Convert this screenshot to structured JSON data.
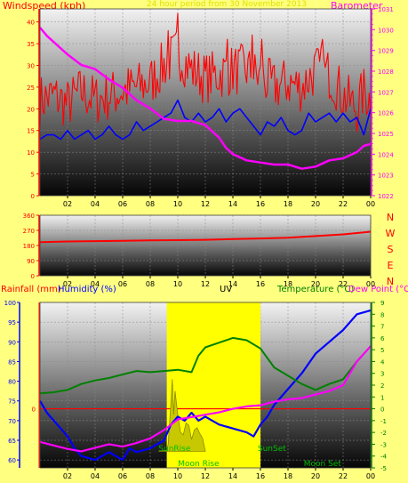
{
  "panels": {
    "wind": {
      "left_title": "Windspeed (kph)",
      "center_title": "24 hour period from 30 November 2013",
      "right_title": "Barometer (mb)"
    },
    "direction": {
      "compass_labels": [
        "N",
        "W",
        "S",
        "E",
        "N"
      ]
    },
    "bottom": {
      "rainfall_label": "Rainfall (mm)",
      "humidity_label": "Humidity (%)",
      "uv_label": "UV",
      "temperature_label": "Temperature (°C)",
      "dewpoint_label": "Dew Point (°C)",
      "events": {
        "sunrise": "SunRise",
        "sunset": "SunSet",
        "moonrise": "Moon Rise",
        "moonset": "Moon Set"
      }
    }
  },
  "colors": {
    "background": "#ffff80",
    "windspeed": "#ff0000",
    "wind_average": "#0000ff",
    "barometer": "#ff00ff",
    "wind_direction": "#ff0000",
    "rainfall_axis": "#0000ff",
    "humidity": "#0000ff",
    "temperature": "#008000",
    "dewpoint": "#ff00ff",
    "uv": "#ffff00",
    "freezing_line": "#ff0000",
    "event_text": "#00c000"
  },
  "chart_data": [
    {
      "type": "line",
      "name_key": "wind",
      "x_ticks": [
        "02",
        "04",
        "06",
        "08",
        "10",
        "12",
        "14",
        "16",
        "18",
        "20",
        "22",
        "00"
      ],
      "x_range_hours": [
        0,
        24
      ],
      "y_left": {
        "ticks": [
          0,
          5,
          10,
          15,
          20,
          25,
          30,
          35,
          40
        ],
        "ylim": [
          0,
          43
        ]
      },
      "y_right": {
        "ticks": [
          1022,
          1023,
          1024,
          1025,
          1026,
          1027,
          1028,
          1029,
          1030,
          1031
        ],
        "ylim": [
          1022,
          1031
        ]
      },
      "series": [
        {
          "key": "gust",
          "axis": "left",
          "noisy": true,
          "amplitude": 6,
          "points": [
            [
              0,
              22
            ],
            [
              1,
              23
            ],
            [
              2,
              21
            ],
            [
              3,
              24
            ],
            [
              4,
              22
            ],
            [
              5,
              23
            ],
            [
              6,
              24
            ],
            [
              7,
              25
            ],
            [
              8,
              26
            ],
            [
              9,
              30
            ],
            [
              10,
              33
            ],
            [
              11,
              29
            ],
            [
              12,
              27
            ],
            [
              13,
              28
            ],
            [
              14,
              29
            ],
            [
              15,
              29
            ],
            [
              16,
              27
            ],
            [
              17,
              25
            ],
            [
              18,
              26
            ],
            [
              19,
              25
            ],
            [
              20,
              29
            ],
            [
              21,
              28
            ],
            [
              22,
              23
            ],
            [
              23,
              20
            ],
            [
              23.5,
              24
            ],
            [
              24,
              22
            ]
          ],
          "spikes": [
            [
              10.0,
              42
            ],
            [
              9.3,
              38
            ],
            [
              15.4,
              37
            ],
            [
              16.1,
              36
            ],
            [
              13.6,
              36
            ],
            [
              20.5,
              36
            ]
          ]
        },
        {
          "key": "average",
          "axis": "left",
          "points": [
            [
              0,
              13
            ],
            [
              0.5,
              14
            ],
            [
              1,
              14
            ],
            [
              1.5,
              13
            ],
            [
              2,
              15
            ],
            [
              2.5,
              13
            ],
            [
              3,
              14
            ],
            [
              3.5,
              15
            ],
            [
              4,
              13
            ],
            [
              4.5,
              14
            ],
            [
              5,
              16
            ],
            [
              5.5,
              14
            ],
            [
              6,
              13
            ],
            [
              6.5,
              14
            ],
            [
              7,
              17
            ],
            [
              7.5,
              15
            ],
            [
              8,
              16
            ],
            [
              8.5,
              17
            ],
            [
              9,
              18
            ],
            [
              9.5,
              19
            ],
            [
              10,
              22
            ],
            [
              10.5,
              18
            ],
            [
              11,
              17
            ],
            [
              11.5,
              19
            ],
            [
              12,
              17
            ],
            [
              12.5,
              18
            ],
            [
              13,
              20
            ],
            [
              13.5,
              17
            ],
            [
              14,
              19
            ],
            [
              14.5,
              20
            ],
            [
              15,
              18
            ],
            [
              15.5,
              16
            ],
            [
              16,
              14
            ],
            [
              16.5,
              17
            ],
            [
              17,
              16
            ],
            [
              17.5,
              18
            ],
            [
              18,
              15
            ],
            [
              18.5,
              14
            ],
            [
              19,
              15
            ],
            [
              19.5,
              19
            ],
            [
              20,
              17
            ],
            [
              20.5,
              18
            ],
            [
              21,
              19
            ],
            [
              21.5,
              17
            ],
            [
              22,
              19
            ],
            [
              22.5,
              17
            ],
            [
              23,
              18
            ],
            [
              23.5,
              14
            ],
            [
              24,
              20
            ]
          ]
        },
        {
          "key": "barometer",
          "axis": "right",
          "points": [
            [
              0,
              1030.1
            ],
            [
              0.5,
              1029.7
            ],
            [
              1,
              1029.4
            ],
            [
              1.5,
              1029.1
            ],
            [
              2,
              1028.8
            ],
            [
              3,
              1028.3
            ],
            [
              4,
              1028.1
            ],
            [
              5,
              1027.6
            ],
            [
              6,
              1027.2
            ],
            [
              7,
              1026.6
            ],
            [
              8,
              1026.2
            ],
            [
              9,
              1025.7
            ],
            [
              10,
              1025.6
            ],
            [
              11,
              1025.6
            ],
            [
              12,
              1025.4
            ],
            [
              13,
              1024.8
            ],
            [
              13.5,
              1024.3
            ],
            [
              14,
              1024.0
            ],
            [
              15,
              1023.7
            ],
            [
              16,
              1023.6
            ],
            [
              17,
              1023.5
            ],
            [
              18,
              1023.5
            ],
            [
              19,
              1023.3
            ],
            [
              20,
              1023.4
            ],
            [
              21,
              1023.7
            ],
            [
              22,
              1023.8
            ],
            [
              23,
              1024.1
            ],
            [
              23.5,
              1024.4
            ],
            [
              24,
              1024.5
            ]
          ]
        }
      ]
    },
    {
      "type": "line",
      "name_key": "direction",
      "x_ticks": [
        "02",
        "04",
        "06",
        "08",
        "10",
        "12",
        "14",
        "16",
        "18",
        "20",
        "22",
        "00"
      ],
      "x_range_hours": [
        0,
        24
      ],
      "y_left": {
        "ticks": [
          0,
          90,
          180,
          270,
          360
        ],
        "ylim": [
          0,
          360
        ]
      },
      "series": [
        {
          "key": "direction",
          "axis": "left",
          "points": [
            [
              0,
              200
            ],
            [
              2,
              204
            ],
            [
              4,
              206
            ],
            [
              6,
              208
            ],
            [
              8,
              210
            ],
            [
              10,
              212
            ],
            [
              12,
              214
            ],
            [
              14,
              218
            ],
            [
              16,
              222
            ],
            [
              18,
              226
            ],
            [
              20,
              236
            ],
            [
              22,
              246
            ],
            [
              24,
              262
            ]
          ]
        }
      ]
    },
    {
      "type": "line",
      "name_key": "bottom",
      "x_ticks": [
        "02",
        "04",
        "06",
        "08",
        "10",
        "12",
        "14",
        "16",
        "18",
        "20",
        "22",
        "00"
      ],
      "x_range_hours": [
        0,
        24
      ],
      "y_humidity": {
        "ticks": [
          60,
          65,
          70,
          75,
          80,
          85,
          90,
          95,
          100
        ],
        "ylim": [
          58,
          100
        ]
      },
      "y_rain": {
        "ticks": [
          0
        ],
        "ylim": [
          0,
          1
        ]
      },
      "y_temp": {
        "ticks": [
          -5,
          -4,
          -3,
          -2,
          -1,
          0,
          1,
          2,
          3,
          4,
          5,
          6,
          7,
          8,
          9
        ],
        "ylim": [
          -5,
          9
        ]
      },
      "daylight_hours": [
        9.2,
        16.0
      ],
      "events_hours": {
        "sunrise": 9.2,
        "sunset": 16.0,
        "moonrise": 11.5,
        "moonset": 20.5
      },
      "series": [
        {
          "key": "uv",
          "axis": "temp",
          "filled": true,
          "points": [
            [
              8.6,
              -3.6
            ],
            [
              9.2,
              -3.5
            ],
            [
              9.3,
              -3.0
            ],
            [
              9.5,
              0.5
            ],
            [
              9.6,
              2.5
            ],
            [
              9.7,
              -0.5
            ],
            [
              9.8,
              1.5
            ],
            [
              10.0,
              -0.5
            ],
            [
              10.2,
              -2.0
            ],
            [
              10.4,
              -2.2
            ],
            [
              10.6,
              -1.2
            ],
            [
              10.8,
              -1.4
            ],
            [
              11.0,
              -2.6
            ],
            [
              11.2,
              -1.8
            ],
            [
              11.4,
              -1.6
            ],
            [
              11.6,
              -2.1
            ],
            [
              11.8,
              -2.5
            ],
            [
              12.0,
              -3.6
            ]
          ]
        },
        {
          "key": "humidity",
          "axis": "humidity",
          "points": [
            [
              0,
              75
            ],
            [
              0.5,
              72
            ],
            [
              1,
              70
            ],
            [
              1.5,
              68
            ],
            [
              2,
              66
            ],
            [
              2.5,
              63
            ],
            [
              3,
              61
            ],
            [
              4,
              60
            ],
            [
              5,
              62
            ],
            [
              6,
              60
            ],
            [
              6.5,
              63
            ],
            [
              7,
              62
            ],
            [
              8,
              63
            ],
            [
              9,
              65
            ],
            [
              9.5,
              69
            ],
            [
              10,
              71
            ],
            [
              10.5,
              70
            ],
            [
              11,
              72
            ],
            [
              11.5,
              70
            ],
            [
              12,
              71
            ],
            [
              12.5,
              70
            ],
            [
              13,
              69
            ],
            [
              14,
              68
            ],
            [
              15,
              67
            ],
            [
              15.5,
              66
            ],
            [
              16,
              69
            ],
            [
              16.5,
              71
            ],
            [
              17,
              74
            ],
            [
              18,
              78
            ],
            [
              19,
              82
            ],
            [
              20,
              87
            ],
            [
              21,
              90
            ],
            [
              22,
              93
            ],
            [
              23,
              97
            ],
            [
              24,
              98
            ]
          ]
        },
        {
          "key": "temperature",
          "axis": "temp",
          "points": [
            [
              0,
              1.3
            ],
            [
              1,
              1.4
            ],
            [
              2,
              1.6
            ],
            [
              3,
              2.1
            ],
            [
              4,
              2.4
            ],
            [
              5,
              2.6
            ],
            [
              6,
              2.9
            ],
            [
              7,
              3.2
            ],
            [
              8,
              3.1
            ],
            [
              9,
              3.2
            ],
            [
              10,
              3.3
            ],
            [
              11,
              3.1
            ],
            [
              11.5,
              4.5
            ],
            [
              12,
              5.2
            ],
            [
              13,
              5.6
            ],
            [
              14,
              6.0
            ],
            [
              15,
              5.8
            ],
            [
              16,
              5.1
            ],
            [
              17,
              3.5
            ],
            [
              18,
              2.8
            ],
            [
              19,
              2.1
            ],
            [
              20,
              1.6
            ],
            [
              21,
              2.1
            ],
            [
              22,
              2.5
            ],
            [
              23,
              4.0
            ],
            [
              24,
              5.3
            ]
          ]
        },
        {
          "key": "dewpoint",
          "axis": "temp",
          "points": [
            [
              0,
              -2.8
            ],
            [
              1,
              -3.1
            ],
            [
              2,
              -3.4
            ],
            [
              3,
              -3.6
            ],
            [
              4,
              -3.3
            ],
            [
              5,
              -3.0
            ],
            [
              6,
              -3.2
            ],
            [
              7,
              -2.9
            ],
            [
              8,
              -2.5
            ],
            [
              9,
              -1.8
            ],
            [
              10,
              -0.9
            ],
            [
              11,
              -0.7
            ],
            [
              12,
              -0.5
            ],
            [
              13,
              -0.3
            ],
            [
              14,
              0.0
            ],
            [
              15,
              0.2
            ],
            [
              16,
              0.3
            ],
            [
              17,
              0.6
            ],
            [
              18,
              0.8
            ],
            [
              19,
              0.9
            ],
            [
              20,
              1.2
            ],
            [
              21,
              1.5
            ],
            [
              22,
              2.0
            ],
            [
              23,
              4.0
            ],
            [
              24,
              5.3
            ]
          ]
        }
      ]
    }
  ]
}
